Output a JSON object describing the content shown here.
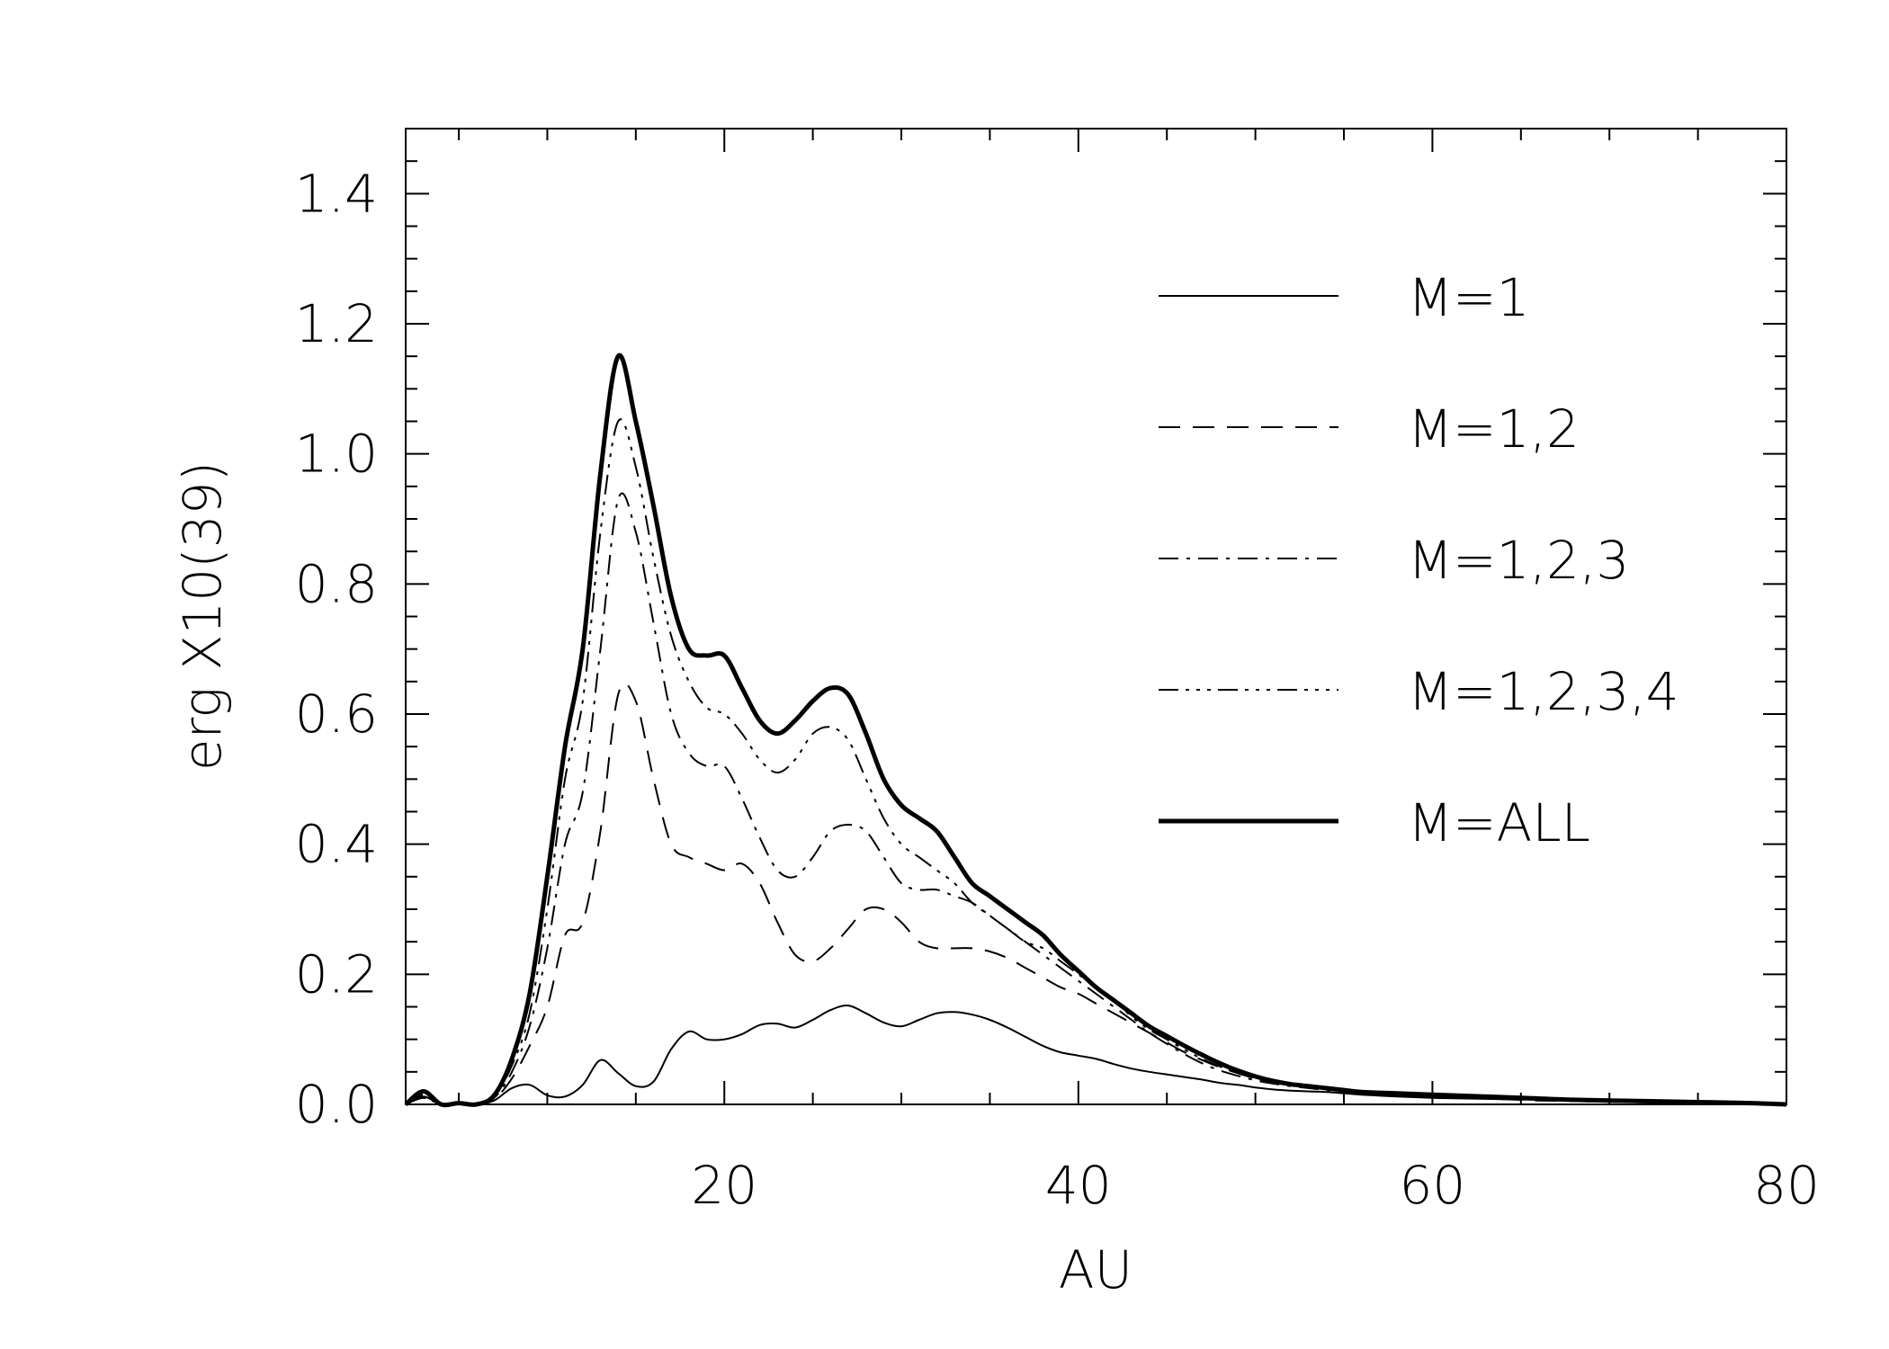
{
  "chart_data": {
    "type": "line",
    "title": "",
    "xlabel": "AU",
    "ylabel": "erg X10(39)",
    "xlim": [
      2,
      80
    ],
    "ylim": [
      0,
      1.5
    ],
    "x_ticks": [
      20,
      40,
      60,
      80
    ],
    "x_tick_labels": [
      "20",
      "40",
      "60",
      "80"
    ],
    "y_ticks": [
      0.0,
      0.2,
      0.4,
      0.6,
      0.8,
      1.0,
      1.2,
      1.4
    ],
    "y_tick_labels": [
      "0.0",
      "0.2",
      "0.4",
      "0.6",
      "0.8",
      "1.0",
      "1.2",
      "1.4"
    ],
    "legend_position": "right",
    "grid": false,
    "x": [
      2,
      3,
      4,
      5,
      6,
      7,
      8,
      9,
      10,
      11,
      12,
      13,
      14,
      15,
      16,
      17,
      18,
      19,
      20,
      21,
      22,
      23,
      24,
      25,
      26,
      27,
      28,
      29,
      30,
      31,
      32,
      33,
      34,
      35,
      36,
      37,
      38,
      39,
      40,
      41,
      42,
      43,
      44,
      45,
      46,
      47,
      48,
      49,
      50,
      51,
      52,
      53,
      54,
      55,
      56,
      58,
      60,
      62,
      64,
      66,
      68,
      70,
      72,
      74,
      76,
      78,
      80
    ],
    "series": [
      {
        "name": "M=1",
        "style": "solid",
        "values": [
          0.0,
          0.012,
          0.0,
          0.002,
          0.0,
          0.006,
          0.025,
          0.03,
          0.014,
          0.012,
          0.03,
          0.068,
          0.048,
          0.028,
          0.035,
          0.085,
          0.112,
          0.1,
          0.1,
          0.108,
          0.122,
          0.124,
          0.118,
          0.13,
          0.145,
          0.152,
          0.14,
          0.126,
          0.12,
          0.13,
          0.14,
          0.142,
          0.138,
          0.13,
          0.118,
          0.104,
          0.09,
          0.08,
          0.075,
          0.07,
          0.062,
          0.055,
          0.05,
          0.046,
          0.042,
          0.038,
          0.033,
          0.03,
          0.026,
          0.023,
          0.021,
          0.02,
          0.019,
          0.017,
          0.015,
          0.012,
          0.01,
          0.009,
          0.008,
          0.007,
          0.006,
          0.005,
          0.004,
          0.003,
          0.002,
          0.001,
          0.0
        ]
      },
      {
        "name": "M=1,2",
        "style": "dashed",
        "values": [
          0.0,
          0.01,
          0.0,
          0.002,
          0.0,
          0.008,
          0.04,
          0.09,
          0.15,
          0.26,
          0.28,
          0.42,
          0.63,
          0.62,
          0.5,
          0.4,
          0.38,
          0.37,
          0.36,
          0.37,
          0.34,
          0.28,
          0.23,
          0.22,
          0.24,
          0.27,
          0.3,
          0.3,
          0.28,
          0.25,
          0.24,
          0.24,
          0.24,
          0.235,
          0.225,
          0.21,
          0.195,
          0.18,
          0.17,
          0.155,
          0.14,
          0.125,
          0.11,
          0.095,
          0.08,
          0.068,
          0.057,
          0.048,
          0.04,
          0.035,
          0.031,
          0.028,
          0.025,
          0.021,
          0.018,
          0.015,
          0.012,
          0.01,
          0.008,
          0.006,
          0.005,
          0.004,
          0.003,
          0.002,
          0.001,
          0.0,
          0.0
        ]
      },
      {
        "name": "M=1,2,3",
        "style": "dash-dot",
        "values": [
          0.0,
          0.01,
          0.0,
          0.002,
          0.0,
          0.01,
          0.05,
          0.12,
          0.24,
          0.4,
          0.48,
          0.7,
          0.93,
          0.88,
          0.74,
          0.6,
          0.54,
          0.52,
          0.52,
          0.47,
          0.41,
          0.36,
          0.35,
          0.38,
          0.42,
          0.43,
          0.42,
          0.38,
          0.34,
          0.33,
          0.33,
          0.32,
          0.31,
          0.29,
          0.27,
          0.25,
          0.23,
          0.21,
          0.19,
          0.17,
          0.15,
          0.13,
          0.11,
          0.093,
          0.077,
          0.063,
          0.052,
          0.044,
          0.037,
          0.032,
          0.028,
          0.025,
          0.022,
          0.019,
          0.016,
          0.014,
          0.012,
          0.01,
          0.009,
          0.007,
          0.006,
          0.005,
          0.004,
          0.003,
          0.002,
          0.001,
          0.0
        ]
      },
      {
        "name": "M=1,2,3,4",
        "style": "dash-dot-dot",
        "values": [
          0.0,
          0.015,
          0.0,
          0.002,
          0.0,
          0.012,
          0.06,
          0.14,
          0.3,
          0.5,
          0.62,
          0.88,
          1.05,
          0.98,
          0.84,
          0.72,
          0.65,
          0.61,
          0.6,
          0.57,
          0.53,
          0.51,
          0.53,
          0.57,
          0.58,
          0.56,
          0.5,
          0.44,
          0.4,
          0.38,
          0.36,
          0.34,
          0.31,
          0.29,
          0.27,
          0.25,
          0.24,
          0.22,
          0.2,
          0.18,
          0.16,
          0.135,
          0.115,
          0.1,
          0.084,
          0.07,
          0.058,
          0.048,
          0.04,
          0.034,
          0.03,
          0.027,
          0.024,
          0.021,
          0.018,
          0.016,
          0.014,
          0.012,
          0.01,
          0.008,
          0.007,
          0.006,
          0.005,
          0.004,
          0.003,
          0.002,
          0.0
        ]
      },
      {
        "name": "M=ALL",
        "style": "thick",
        "values": [
          0.0,
          0.02,
          0.0,
          0.002,
          0.0,
          0.014,
          0.07,
          0.17,
          0.35,
          0.55,
          0.7,
          0.97,
          1.15,
          1.05,
          0.92,
          0.78,
          0.7,
          0.69,
          0.69,
          0.64,
          0.59,
          0.57,
          0.59,
          0.62,
          0.64,
          0.63,
          0.57,
          0.5,
          0.46,
          0.44,
          0.42,
          0.38,
          0.34,
          0.32,
          0.3,
          0.28,
          0.26,
          0.23,
          0.205,
          0.18,
          0.16,
          0.14,
          0.12,
          0.105,
          0.09,
          0.076,
          0.063,
          0.052,
          0.043,
          0.036,
          0.031,
          0.028,
          0.025,
          0.022,
          0.019,
          0.017,
          0.015,
          0.013,
          0.011,
          0.009,
          0.007,
          0.006,
          0.005,
          0.004,
          0.003,
          0.002,
          0.0
        ]
      }
    ]
  }
}
